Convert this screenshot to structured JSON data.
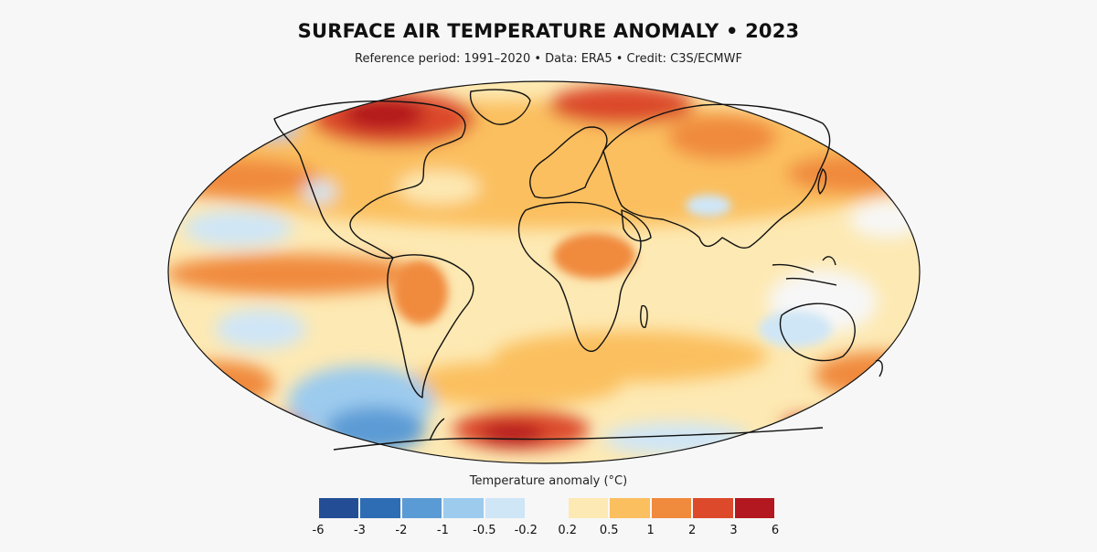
{
  "title": "SURFACE AIR TEMPERATURE ANOMALY • 2023",
  "subtitle": "Reference period: 1991–2020 • Data: ERA5 • Credit: C3S/ECMWF",
  "legend": {
    "title": "Temperature anomaly (°C)",
    "bins": [
      {
        "from": -6,
        "to": -3,
        "color": "#234e96"
      },
      {
        "from": -3,
        "to": -2,
        "color": "#2e6db4"
      },
      {
        "from": -2,
        "to": -1,
        "color": "#5b9bd5"
      },
      {
        "from": -1,
        "to": -0.5,
        "color": "#9ccbee"
      },
      {
        "from": -0.5,
        "to": -0.2,
        "color": "#cfe6f7"
      },
      {
        "from": -0.2,
        "to": 0.2,
        "color": "#f7f7f7"
      },
      {
        "from": 0.2,
        "to": 0.5,
        "color": "#fde9b3"
      },
      {
        "from": 0.5,
        "to": 1,
        "color": "#fbbf5f"
      },
      {
        "from": 1,
        "to": 2,
        "color": "#f08a3c"
      },
      {
        "from": 2,
        "to": 3,
        "color": "#dc4a2b"
      },
      {
        "from": 3,
        "to": 6,
        "color": "#b3171f"
      }
    ],
    "ticks": [
      "-6",
      "-3",
      "-2",
      "-1",
      "-0.5",
      "-0.2",
      "0.2",
      "0.5",
      "1",
      "2",
      "3",
      "6"
    ]
  },
  "map": {
    "projection": "robinson",
    "ocean_color": "#fde4a6",
    "land_outline_color": "#111111"
  }
}
